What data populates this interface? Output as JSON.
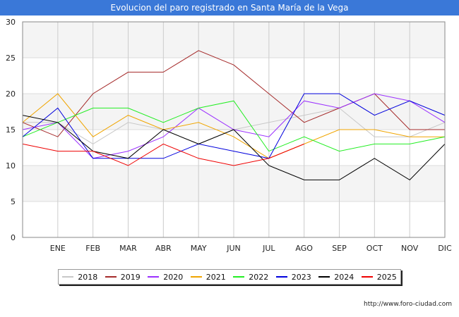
{
  "chart_data": {
    "type": "line",
    "title": "Evolucion del paro registrado en Santa María de la Vega",
    "xlabel": "",
    "ylabel": "",
    "ylim": [
      0,
      30
    ],
    "yticks": [
      0,
      5,
      10,
      15,
      20,
      25,
      30
    ],
    "categories": [
      "",
      "ENE",
      "FEB",
      "MAR",
      "ABR",
      "MAY",
      "JUN",
      "JUL",
      "AGO",
      "SEP",
      "OCT",
      "NOV",
      "DIC"
    ],
    "series": [
      {
        "name": "2018",
        "color": "#c8c8c8",
        "values": [
          16,
          16,
          13,
          16,
          15,
          15,
          15,
          16,
          17,
          18,
          14,
          14,
          16
        ]
      },
      {
        "name": "2019",
        "color": "#a52a2a",
        "values": [
          16,
          14,
          20,
          23,
          23,
          26,
          24,
          20,
          16,
          18,
          20,
          15,
          15
        ]
      },
      {
        "name": "2020",
        "color": "#9b30ff",
        "values": [
          15,
          16,
          11,
          12,
          14,
          18,
          15,
          14,
          19,
          18,
          20,
          19,
          16
        ]
      },
      {
        "name": "2021",
        "color": "#f0a500",
        "values": [
          16,
          20,
          14,
          17,
          15,
          16,
          14,
          11,
          13,
          15,
          15,
          14,
          14
        ]
      },
      {
        "name": "2022",
        "color": "#22ee22",
        "values": [
          14,
          16,
          18,
          18,
          16,
          18,
          19,
          12,
          14,
          12,
          13,
          13,
          14
        ]
      },
      {
        "name": "2023",
        "color": "#0000dd",
        "values": [
          14,
          18,
          11,
          11,
          11,
          13,
          12,
          11,
          20,
          20,
          17,
          19,
          17
        ]
      },
      {
        "name": "2024",
        "color": "#000000",
        "values": [
          17,
          16,
          12,
          11,
          15,
          13,
          15,
          10,
          8,
          8,
          11,
          8,
          13
        ]
      },
      {
        "name": "2025",
        "color": "#ee0000",
        "values": [
          13,
          12,
          12,
          10,
          13,
          11,
          10,
          11,
          13,
          null,
          null,
          null,
          null
        ]
      }
    ],
    "grid": true,
    "legend_position": "bottom"
  },
  "source_text": "http://www.foro-ciudad.com"
}
